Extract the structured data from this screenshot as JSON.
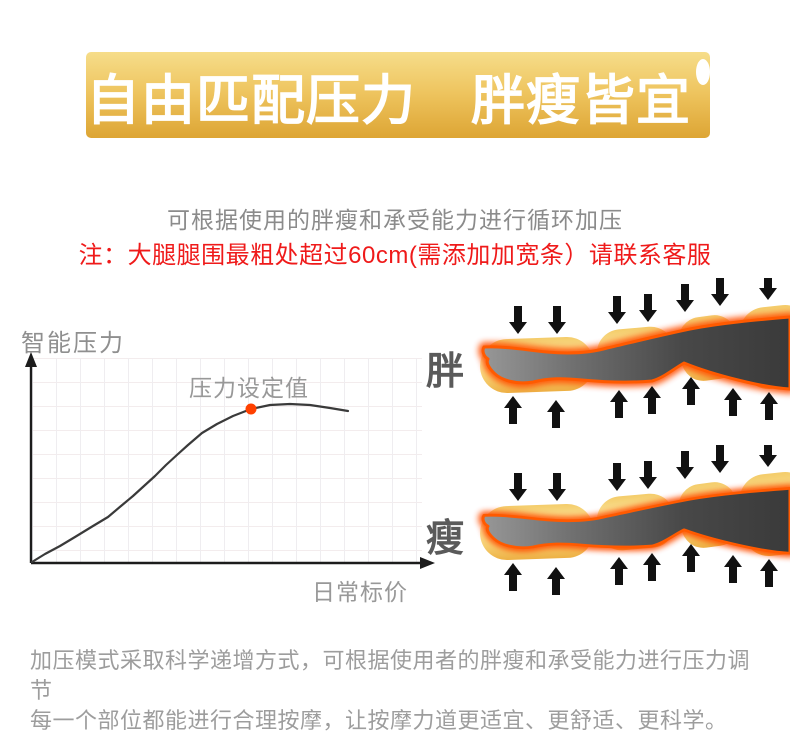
{
  "banner": {
    "title": "自由匹配压力　胖瘦皆宜",
    "colors": {
      "top": "#f6dd8a",
      "mid": "#eec45e",
      "bottom": "#dda534",
      "text": "#ffffff"
    }
  },
  "intro": {
    "subtitle": "可根据使用的胖瘦和承受能力进行循环加压",
    "note": "注：大腿腿围最粗处超过60cm(需添加加宽条）请联系客服",
    "subtitle_color": "#8b8b8b",
    "note_color": "#ef1a1a"
  },
  "chart": {
    "type": "line",
    "y_axis_label": "智能压力",
    "x_axis_label": "日常标价",
    "point_label": "压力设定值",
    "curve_color": "#3a3a3a",
    "point_color": "#ff4000",
    "axis_color": "#1c1c1c",
    "grid": "on",
    "set_point": [
      236,
      89
    ],
    "curve_points": [
      [
        17,
        242
      ],
      [
        30,
        234
      ],
      [
        45,
        226
      ],
      [
        60,
        217
      ],
      [
        78,
        206
      ],
      [
        93,
        197
      ],
      [
        106,
        186
      ],
      [
        118,
        176
      ],
      [
        129,
        166
      ],
      [
        140,
        156
      ],
      [
        151,
        145
      ],
      [
        163,
        134
      ],
      [
        173,
        125
      ],
      [
        187,
        113
      ],
      [
        202,
        104
      ],
      [
        218,
        96
      ],
      [
        236,
        89
      ],
      [
        255,
        85
      ],
      [
        275,
        84
      ],
      [
        295,
        85
      ],
      [
        315,
        88
      ],
      [
        333,
        91
      ]
    ]
  },
  "legs": {
    "items": [
      {
        "label": "胖"
      },
      {
        "label": "瘦"
      }
    ],
    "airbag_color": "#f2bd4e",
    "airbag_highlight": "#fce9a4",
    "glow_color": "#ff4d00",
    "leg_color": "#4a4a4a",
    "arrow_color": "#111111"
  },
  "footer": {
    "line1": "加压模式采取科学递增方式，可根据使用者的胖瘦和承受能力进行压力调节",
    "line2": "每一个部位都能进行合理按摩，让按摩力道更适宜、更舒适、更科学。",
    "color": "#9d9d9d"
  }
}
